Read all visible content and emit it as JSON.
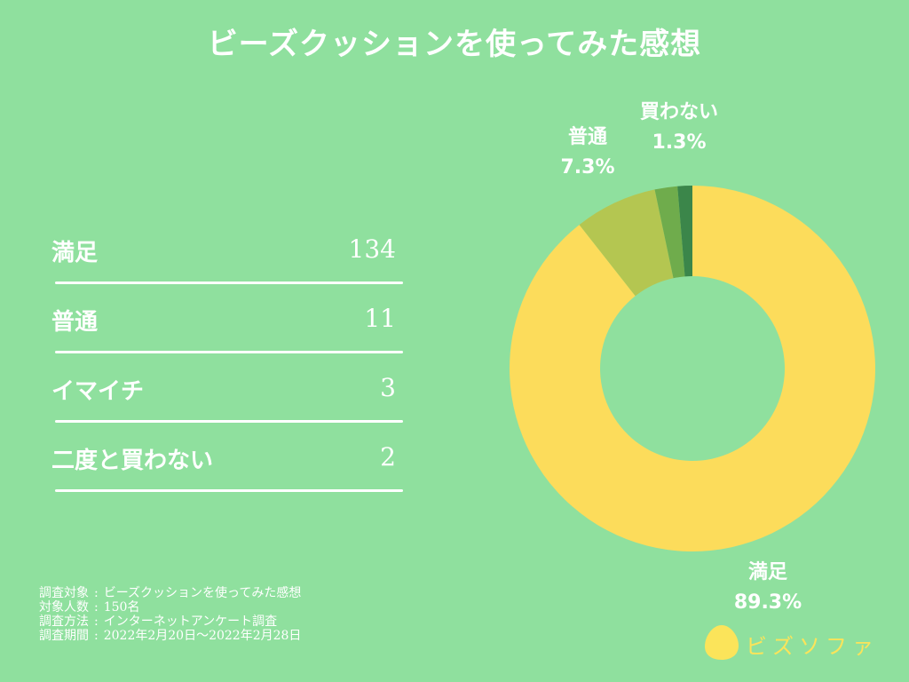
{
  "title": "ビーズクッションを使ってみた感想",
  "table": {
    "rows": [
      {
        "label": "満足",
        "value": "134"
      },
      {
        "label": "普通",
        "value": "11"
      },
      {
        "label": "イマイチ",
        "value": "3"
      },
      {
        "label": "二度と買わない",
        "value": "2"
      }
    ]
  },
  "chart_data": {
    "type": "pie",
    "donut": true,
    "slices": [
      {
        "label": "満足",
        "percent_label": "89.3%",
        "value": 89.3,
        "color": "#fcdc5b"
      },
      {
        "label": "普通",
        "percent_label": "7.3%",
        "value": 7.3,
        "color": "#b4c651"
      },
      {
        "label": "イマイチ",
        "value": 2.0,
        "color": "#6fac4c"
      },
      {
        "label": "買わない",
        "percent_label": "1.3%",
        "value": 1.3,
        "color": "#3b864a"
      }
    ]
  },
  "footer": {
    "survey_subject_label": "調査対象",
    "survey_subject": "ビーズクッションを使ってみた感想",
    "respondents_label": "対象人数",
    "respondents": "150名",
    "method_label": "調査方法",
    "method": "インターネットアンケート調査",
    "period_label": "調査期間",
    "period": "2022年2月20日～2022年2月28日"
  },
  "brand": {
    "name": "ビズソファ",
    "color": "#fbe45a"
  },
  "colors": {
    "background": "#8fe09e",
    "text": "#ffffff"
  }
}
